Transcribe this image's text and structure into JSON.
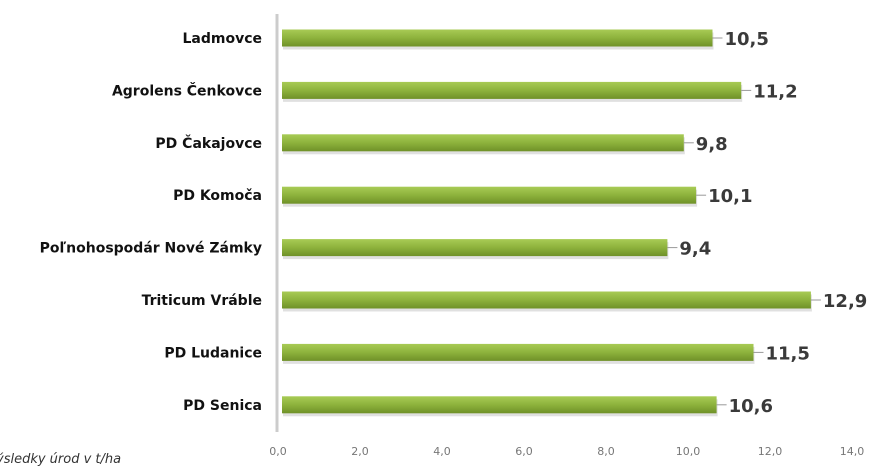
{
  "chart_data": {
    "type": "bar",
    "orientation": "horizontal",
    "categories": [
      "Ladmovce",
      "Agrolens Čenkovce",
      "PD Čakajovce",
      "PD Komoča",
      "Poľnohospodár Nové Zámky",
      "Triticum Vráble",
      "PD Ludanice",
      "PD Senica"
    ],
    "values": [
      10.5,
      11.2,
      9.8,
      10.1,
      9.4,
      12.9,
      11.5,
      10.6
    ],
    "value_labels": [
      "10,5",
      "11,2",
      "9,8",
      "10,1",
      "9,4",
      "12,9",
      "11,5",
      "10,6"
    ],
    "x_ticks": [
      "0,0",
      "2,0",
      "4,0",
      "6,0",
      "8,0",
      "10,0",
      "12,0",
      "14,0"
    ],
    "xlim": [
      0,
      14
    ],
    "title": "",
    "xlabel": "",
    "ylabel": "",
    "grid": false,
    "legend": "none",
    "colors": {
      "bar": "#8db23c",
      "bar_light": "#a8cb55",
      "bar_dark": "#6f9128",
      "axis": "#cccccc",
      "leader": "#999999"
    }
  },
  "note": "ýsledky úrod v t/ha"
}
